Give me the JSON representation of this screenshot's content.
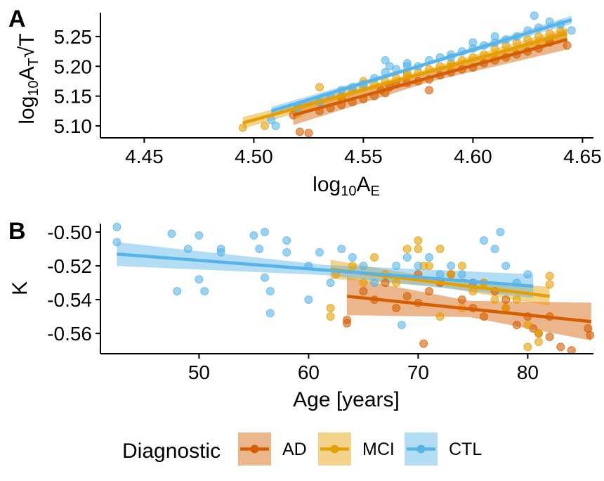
{
  "legend": {
    "title": "Diagnostic",
    "entries": [
      {
        "label": "AD",
        "color": "#D55E00"
      },
      {
        "label": "MCI",
        "color": "#E69F00"
      },
      {
        "label": "CTL",
        "color": "#56B4E9"
      }
    ]
  },
  "chart_data": [
    {
      "type": "scatter",
      "panel_label": "A",
      "xlabel": "log10AE",
      "ylabel": "log10AT√T",
      "xlim": [
        4.43,
        4.655
      ],
      "ylim": [
        5.08,
        5.29
      ],
      "x_ticks": [
        4.45,
        4.5,
        4.55,
        4.6,
        4.65
      ],
      "x_tick_labels": [
        "4.45",
        "4.50",
        "4.55",
        "4.60",
        "4.65"
      ],
      "y_ticks": [
        5.1,
        5.15,
        5.2,
        5.25
      ],
      "y_tick_labels": [
        "5.10",
        "5.15",
        "5.20",
        "5.25"
      ],
      "grid": false,
      "series": [
        {
          "name": "AD",
          "color": "#D55E00",
          "fit": {
            "x": [
              4.518,
              4.643
            ],
            "y": [
              5.118,
              5.245
            ],
            "ci": 0.012
          },
          "x": [
            4.518,
            4.521,
            4.525,
            4.53,
            4.535,
            4.54,
            4.545,
            4.55,
            4.555,
            4.558,
            4.562,
            4.565,
            4.57,
            4.575,
            4.58,
            4.585,
            4.59,
            4.595,
            4.6,
            4.605,
            4.61,
            4.615,
            4.62,
            4.625,
            4.63,
            4.635,
            4.643,
            4.54,
            4.56,
            4.58
          ],
          "y": [
            5.118,
            5.09,
            5.088,
            5.125,
            5.13,
            5.135,
            5.14,
            5.145,
            5.15,
            5.16,
            5.165,
            5.17,
            5.172,
            5.175,
            5.178,
            5.185,
            5.19,
            5.195,
            5.198,
            5.205,
            5.21,
            5.215,
            5.22,
            5.225,
            5.23,
            5.24,
            5.235,
            5.148,
            5.155,
            5.16
          ]
        },
        {
          "name": "MCI",
          "color": "#E69F00",
          "fit": {
            "x": [
              4.495,
              4.643
            ],
            "y": [
              5.105,
              5.255
            ],
            "ci": 0.007
          },
          "x": [
            4.495,
            4.505,
            4.52,
            4.53,
            4.54,
            4.545,
            4.55,
            4.555,
            4.56,
            4.565,
            4.57,
            4.575,
            4.58,
            4.585,
            4.59,
            4.595,
            4.6,
            4.605,
            4.61,
            4.615,
            4.62,
            4.625,
            4.63,
            4.635,
            4.64,
            4.53,
            4.55,
            4.57,
            4.59,
            4.61
          ],
          "y": [
            5.097,
            5.1,
            5.12,
            5.14,
            5.15,
            5.16,
            5.165,
            5.17,
            5.175,
            5.18,
            5.185,
            5.19,
            5.195,
            5.2,
            5.205,
            5.21,
            5.215,
            5.22,
            5.23,
            5.235,
            5.24,
            5.245,
            5.25,
            5.255,
            5.26,
            5.165,
            5.175,
            5.19,
            5.2,
            5.215
          ]
        },
        {
          "name": "CTL",
          "color": "#56B4E9",
          "fit": {
            "x": [
              4.508,
              4.645
            ],
            "y": [
              5.125,
              5.278
            ],
            "ci": 0.005
          },
          "x": [
            4.508,
            4.51,
            4.52,
            4.53,
            4.535,
            4.54,
            4.545,
            4.55,
            4.555,
            4.56,
            4.562,
            4.565,
            4.57,
            4.575,
            4.58,
            4.585,
            4.59,
            4.595,
            4.6,
            4.605,
            4.61,
            4.615,
            4.62,
            4.625,
            4.628,
            4.63,
            4.635,
            4.64,
            4.645,
            4.56,
            4.57,
            4.59,
            4.6,
            4.61
          ],
          "y": [
            5.11,
            5.1,
            5.13,
            5.14,
            5.15,
            5.16,
            5.165,
            5.17,
            5.18,
            5.19,
            5.2,
            5.195,
            5.205,
            5.2,
            5.21,
            5.215,
            5.22,
            5.225,
            5.23,
            5.235,
            5.24,
            5.245,
            5.25,
            5.26,
            5.285,
            5.265,
            5.275,
            5.27,
            5.26,
            5.21,
            5.2,
            5.215,
            5.24,
            5.25
          ]
        }
      ]
    },
    {
      "type": "scatter",
      "panel_label": "B",
      "xlabel": "Age [years]",
      "ylabel": "K",
      "xlim": [
        41,
        86
      ],
      "ylim": [
        -0.572,
        -0.495
      ],
      "x_ticks": [
        50,
        60,
        70,
        80
      ],
      "x_tick_labels": [
        "50",
        "60",
        "70",
        "80"
      ],
      "y_ticks": [
        -0.5,
        -0.52,
        -0.54,
        -0.56
      ],
      "y_tick_labels": [
        "-0.50",
        "-0.52",
        "-0.54",
        "-0.56"
      ],
      "grid": false,
      "series": [
        {
          "name": "AD",
          "color": "#D55E00",
          "fit": {
            "x": [
              63.5,
              85.8
            ],
            "y": [
              -0.538,
              -0.553
            ],
            "ci": 0.008
          },
          "x": [
            63.5,
            63.5,
            65,
            66,
            67,
            68,
            69,
            70,
            70.5,
            71,
            72,
            73,
            74,
            75,
            76,
            77,
            78,
            79,
            80,
            80.5,
            81,
            82,
            83,
            84,
            85.5,
            85.7,
            70,
            75,
            78,
            82
          ],
          "y": [
            -0.552,
            -0.554,
            -0.535,
            -0.54,
            -0.53,
            -0.545,
            -0.538,
            -0.542,
            -0.566,
            -0.535,
            -0.53,
            -0.525,
            -0.54,
            -0.545,
            -0.55,
            -0.535,
            -0.545,
            -0.555,
            -0.55,
            -0.557,
            -0.56,
            -0.562,
            -0.568,
            -0.57,
            -0.557,
            -0.561,
            -0.525,
            -0.53,
            -0.54,
            -0.55
          ]
        },
        {
          "name": "MCI",
          "color": "#E69F00",
          "fit": {
            "x": [
              62,
              82
            ],
            "y": [
              -0.522,
              -0.538
            ],
            "ci": 0.004
          },
          "x": [
            62,
            62,
            62.5,
            64,
            65,
            66,
            67,
            68,
            69,
            70,
            70.5,
            71,
            72,
            73,
            74,
            75,
            76,
            77,
            78,
            79,
            80,
            81,
            82,
            82,
            70,
            72,
            74,
            76,
            80,
            81
          ],
          "y": [
            -0.545,
            -0.55,
            -0.525,
            -0.52,
            -0.53,
            -0.515,
            -0.525,
            -0.53,
            -0.51,
            -0.505,
            -0.52,
            -0.52,
            -0.51,
            -0.525,
            -0.52,
            -0.535,
            -0.53,
            -0.54,
            -0.545,
            -0.54,
            -0.555,
            -0.565,
            -0.526,
            -0.531,
            -0.51,
            -0.55,
            -0.545,
            -0.53,
            -0.568,
            -0.56
          ]
        },
        {
          "name": "CTL",
          "color": "#56B4E9",
          "fit": {
            "x": [
              42.5,
              80.5
            ],
            "y": [
              -0.513,
              -0.532
            ],
            "ci": 0.005
          },
          "x": [
            42.5,
            42.5,
            47.5,
            48,
            49,
            50,
            50,
            50.5,
            52,
            52,
            55,
            55.5,
            56,
            56,
            56.5,
            58,
            58,
            60,
            61,
            62,
            63,
            64,
            65,
            66,
            68,
            68.5,
            69,
            70,
            71,
            72,
            73,
            74,
            75,
            76,
            77,
            77.5,
            78,
            79,
            80,
            56.5,
            60
          ],
          "y": [
            -0.497,
            -0.506,
            -0.501,
            -0.535,
            -0.51,
            -0.502,
            -0.528,
            -0.535,
            -0.51,
            -0.512,
            -0.502,
            -0.51,
            -0.5,
            -0.527,
            -0.535,
            -0.505,
            -0.512,
            -0.52,
            -0.512,
            -0.53,
            -0.51,
            -0.515,
            -0.52,
            -0.53,
            -0.52,
            -0.555,
            -0.515,
            -0.52,
            -0.515,
            -0.525,
            -0.52,
            -0.525,
            -0.53,
            -0.505,
            -0.51,
            -0.5,
            -0.52,
            -0.53,
            -0.525,
            -0.548,
            -0.54
          ]
        }
      ]
    }
  ]
}
